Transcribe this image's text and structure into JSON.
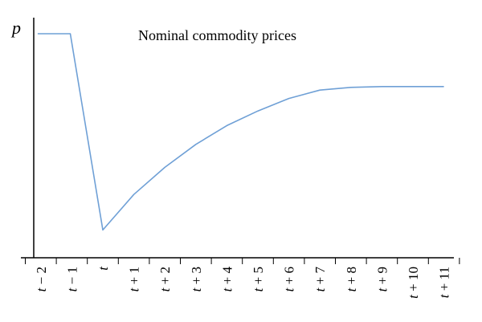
{
  "chart_data": {
    "type": "line",
    "title": "Nominal commodity prices",
    "ylabel": "p",
    "xlabel": "",
    "categories": [
      {
        "base": "t",
        "op": "−",
        "num": "2"
      },
      {
        "base": "t",
        "op": "−",
        "num": "1"
      },
      {
        "base": "t",
        "op": "",
        "num": ""
      },
      {
        "base": "t",
        "op": "+",
        "num": "1"
      },
      {
        "base": "t",
        "op": "+",
        "num": "2"
      },
      {
        "base": "t",
        "op": "+",
        "num": "3"
      },
      {
        "base": "t",
        "op": "+",
        "num": "4"
      },
      {
        "base": "t",
        "op": "+",
        "num": "5"
      },
      {
        "base": "t",
        "op": "+",
        "num": "6"
      },
      {
        "base": "t",
        "op": "+",
        "num": "7"
      },
      {
        "base": "t",
        "op": "+",
        "num": "8"
      },
      {
        "base": "t",
        "op": "+",
        "num": "9"
      },
      {
        "base": "t",
        "op": "+",
        "num": "10"
      },
      {
        "base": "t",
        "op": "+",
        "num": "11"
      }
    ],
    "series": [
      {
        "x": [
          -2.1,
          -1.05,
          0,
          1,
          2,
          3,
          4,
          5,
          6,
          7,
          8,
          9,
          10,
          11
        ],
        "values": [
          100,
          100,
          6,
          23,
          36,
          47,
          56,
          63,
          69,
          73,
          74.3,
          74.7,
          74.7,
          74.7
        ]
      }
    ],
    "ylim": [
      0,
      100
    ],
    "grid": false,
    "y_ticks_shown": false,
    "line_color": "#6fa0d6"
  }
}
